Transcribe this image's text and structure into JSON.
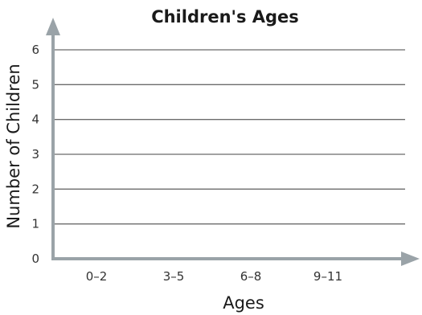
{
  "chart_data": {
    "type": "bar",
    "title": "Children's Ages",
    "xlabel": "Ages",
    "ylabel": "Number of Children",
    "categories": [
      "0–2",
      "3–5",
      "6–8",
      "9–11"
    ],
    "values": [
      null,
      null,
      null,
      null
    ],
    "ylim": [
      0,
      6
    ],
    "yticks": [
      "0",
      "1",
      "2",
      "3",
      "4",
      "5",
      "6"
    ],
    "grid": true,
    "colors": {
      "grid": "#6b6b6b",
      "axis": "#9aa3a8",
      "text": "#1a1a1a"
    }
  }
}
